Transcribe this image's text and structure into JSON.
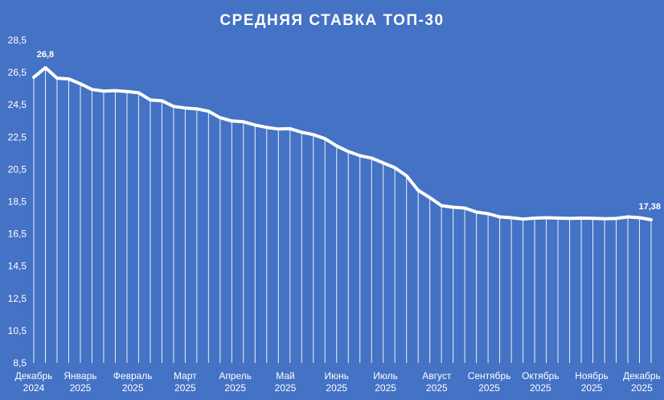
{
  "chart_data": {
    "type": "line",
    "title": "СРЕДНЯЯ СТАВКА ТОП-30",
    "xlabel": "",
    "ylabel": "",
    "ylim": [
      8.5,
      28.5
    ],
    "yticks": [
      "8,5",
      "10,5",
      "12,5",
      "14,5",
      "16,5",
      "18,5",
      "20,5",
      "22,5",
      "24,5",
      "26,5",
      "28,5"
    ],
    "ytick_values": [
      8.5,
      10.5,
      12.5,
      14.5,
      16.5,
      18.5,
      20.5,
      22.5,
      24.5,
      26.5,
      28.5
    ],
    "xticks": [
      {
        "line1": "Декабрь",
        "line2": "2024",
        "index": 0
      },
      {
        "line1": "Январь",
        "line2": "2025",
        "index": 4
      },
      {
        "line1": "Февраль",
        "line2": "2025",
        "index": 8.5
      },
      {
        "line1": "Март",
        "line2": "2025",
        "index": 13
      },
      {
        "line1": "Апрель",
        "line2": "2025",
        "index": 17.3
      },
      {
        "line1": "Май",
        "line2": "2025",
        "index": 21.6
      },
      {
        "line1": "Июнь",
        "line2": "2025",
        "index": 26
      },
      {
        "line1": "Июль",
        "line2": "2025",
        "index": 30.2
      },
      {
        "line1": "Август",
        "line2": "2025",
        "index": 34.6
      },
      {
        "line1": "Сентябрь",
        "line2": "2025",
        "index": 39.1
      },
      {
        "line1": "Октябрь",
        "line2": "2025",
        "index": 43.5
      },
      {
        "line1": "Ноябрь",
        "line2": "2025",
        "index": 47.9
      },
      {
        "line1": "Декабрь",
        "line2": "2025",
        "index": 52.2
      }
    ],
    "grid": "vertical drop lines",
    "series": [
      {
        "values": [
          26.2,
          26.8,
          26.15,
          26.1,
          25.8,
          25.45,
          25.35,
          25.38,
          25.32,
          25.25,
          24.8,
          24.75,
          24.4,
          24.3,
          24.25,
          24.1,
          23.7,
          23.5,
          23.45,
          23.25,
          23.1,
          23.0,
          23.02,
          22.8,
          22.65,
          22.4,
          21.95,
          21.6,
          21.35,
          21.2,
          20.9,
          20.6,
          20.1,
          19.2,
          18.75,
          18.25,
          18.15,
          18.1,
          17.85,
          17.75,
          17.55,
          17.5,
          17.42,
          17.48,
          17.5,
          17.48,
          17.46,
          17.48,
          17.47,
          17.44,
          17.46,
          17.55,
          17.5,
          17.38
        ],
        "color": "#ffffff"
      }
    ],
    "data_labels": [
      {
        "index": 1,
        "text": "26,8"
      },
      {
        "index": 53,
        "text": "17,38"
      }
    ],
    "colors": {
      "background": "#4472C4",
      "line": "#ffffff"
    }
  }
}
